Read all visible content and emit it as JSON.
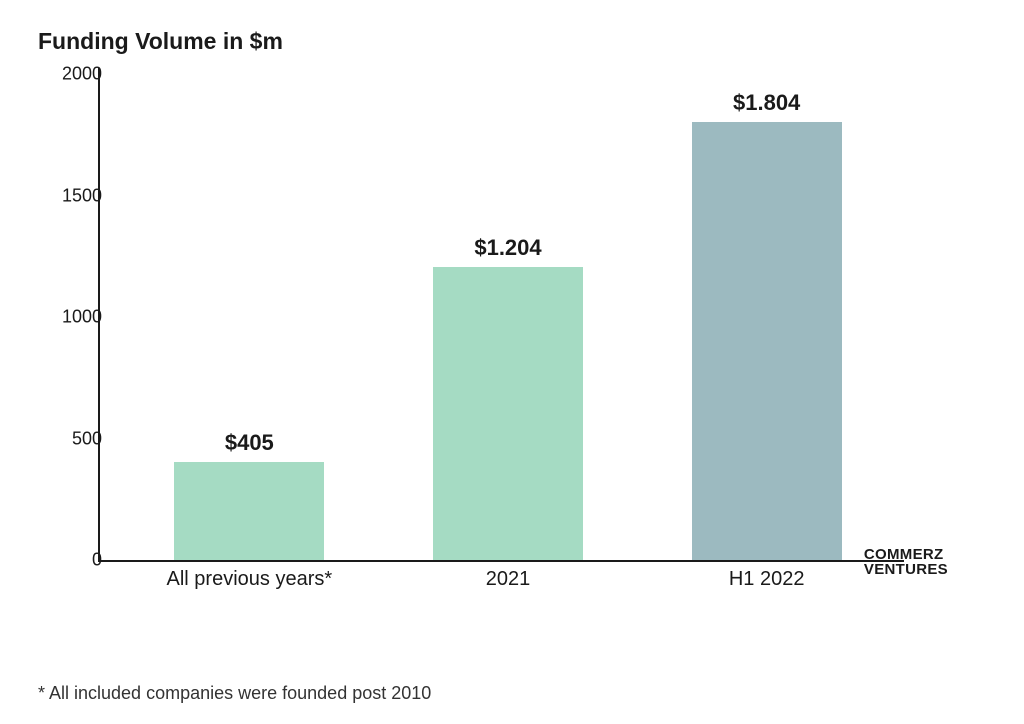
{
  "chart": {
    "type": "bar",
    "title": "Funding Volume in $m",
    "title_fontsize": 23,
    "title_color": "#1a1a1a",
    "background_color": "#ffffff",
    "series": [
      {
        "category": "All previous years*",
        "value": 405,
        "label": "$405",
        "color": "#a5dbc3"
      },
      {
        "category": "2021",
        "value": 1204,
        "label": "$1.204",
        "color": "#a5dbc3"
      },
      {
        "category": "H1 2022",
        "value": 1804,
        "label": "$1.804",
        "color": "#9cbac0"
      }
    ],
    "y_axis": {
      "min": 0,
      "max": 2000,
      "tick_step": 500,
      "ticks": [
        "0",
        "500",
        "1000",
        "1500",
        "2000"
      ]
    },
    "axis_color": "#1a1a1a",
    "bar_label_fontsize": 22,
    "x_label_fontsize": 20,
    "y_label_fontsize": 18,
    "bar_width_ratio": 0.58
  },
  "logo": {
    "line1": "COMMERZ",
    "line2": "VENTURES"
  },
  "footnote": "* All included companies were founded post 2010"
}
